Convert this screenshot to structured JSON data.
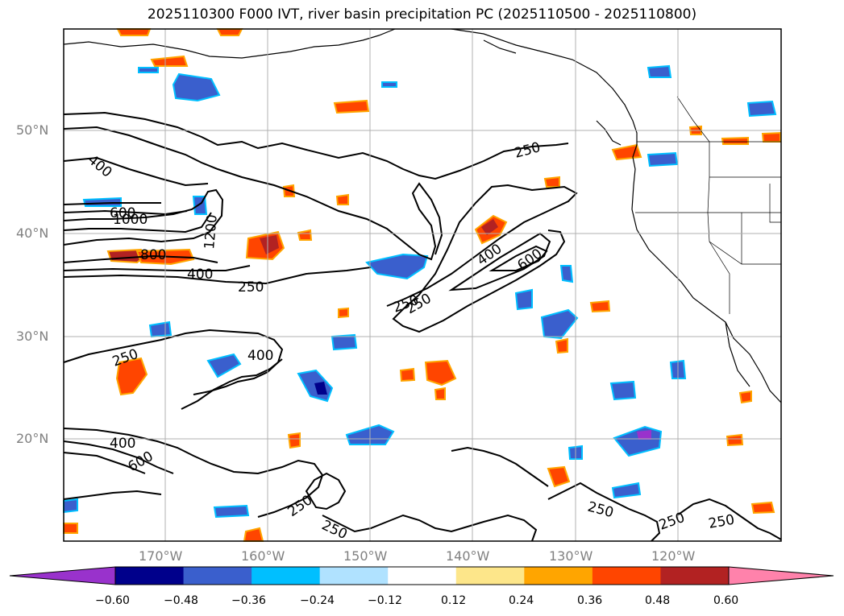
{
  "title": "2025110300 F000 IVT, river basin precipitation PC (2025110500 - 2025110800)",
  "lat_labels": [
    "50°N",
    "40°N",
    "30°N",
    "20°N"
  ],
  "lon_labels": [
    "170°W",
    "160°W",
    "150°W",
    "140°W",
    "130°W",
    "120°W"
  ],
  "contour_labels": [
    "400",
    "250",
    "600",
    "1000",
    "1200",
    "800",
    "400",
    "250",
    "250",
    "400",
    "600",
    "250",
    "250",
    "400",
    "400",
    "600",
    "250",
    "250",
    "250",
    "250",
    "250"
  ],
  "colorbar": {
    "ticks": [
      "−0.60",
      "−0.48",
      "−0.36",
      "−0.24",
      "−0.12",
      "0.12",
      "0.24",
      "0.36",
      "0.48",
      "0.60"
    ],
    "colors": [
      "#9932cc",
      "#00008b",
      "#3a5fcd",
      "#00bfff",
      "#b0e2ff",
      "#ffffff",
      "#fde68a",
      "#ffa500",
      "#ff4500",
      "#b22222",
      "#ff82ab"
    ]
  }
}
